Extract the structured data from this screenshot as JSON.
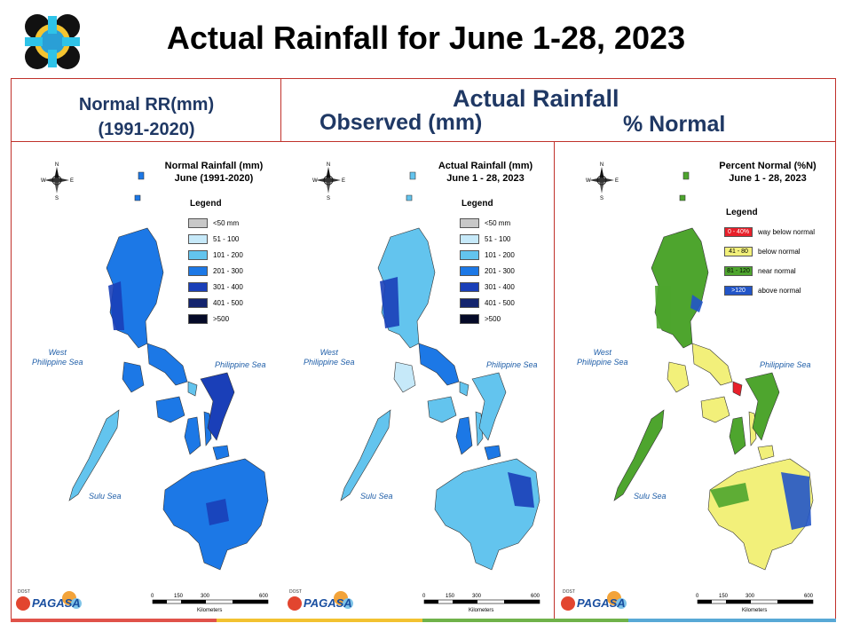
{
  "header": {
    "title": "Actual Rainfall for June 1-28, 2023"
  },
  "columns": {
    "normal_header_line1": "Normal RR(mm)",
    "normal_header_line2": "(1991-2020)",
    "actual_header": "Actual Rainfall",
    "observed_header": "Observed (mm)",
    "percent_header": "% Normal"
  },
  "panels": [
    {
      "title_line1": "Normal Rainfall (mm)",
      "title_line2": "June (1991-2020)",
      "legend_title": "Legend",
      "legend": [
        {
          "label": "<50 mm",
          "color": "#c8c8c8"
        },
        {
          "label": "51 - 100",
          "color": "#c6e9f9"
        },
        {
          "label": "101 - 200",
          "color": "#63c4ee"
        },
        {
          "label": "201 - 300",
          "color": "#1c78e6"
        },
        {
          "label": "301 - 400",
          "color": "#1a3fb8"
        },
        {
          "label": "401 - 500",
          "color": "#14246e"
        },
        {
          "label": ">500",
          "color": "#050a28"
        }
      ],
      "seas": {
        "west_1": "West",
        "west_2": "Philippine Sea",
        "east": "Philippine Sea",
        "sulu": "Sulu Sea"
      }
    },
    {
      "title_line1": "Actual Rainfall (mm)",
      "title_line2": "June 1 - 28, 2023",
      "legend_title": "Legend",
      "legend": [
        {
          "label": "<50 mm",
          "color": "#c8c8c8"
        },
        {
          "label": "51 - 100",
          "color": "#c6e9f9"
        },
        {
          "label": "101 - 200",
          "color": "#63c4ee"
        },
        {
          "label": "201 - 300",
          "color": "#1c78e6"
        },
        {
          "label": "301 - 400",
          "color": "#1a3fb8"
        },
        {
          "label": "401 - 500",
          "color": "#14246e"
        },
        {
          "label": ">500",
          "color": "#050a28"
        }
      ],
      "seas": {
        "west_1": "West",
        "west_2": "Philippine Sea",
        "east": "Philippine Sea",
        "sulu": "Sulu Sea"
      }
    },
    {
      "title_line1": "Percent Normal (%N)",
      "title_line2": "June 1 - 28, 2023",
      "legend_title": "Legend",
      "legend": [
        {
          "box": "0 - 40%",
          "label": "way below normal",
          "color": "#e8202a",
          "text_color": "#ffffff"
        },
        {
          "box": "41 - 80",
          "label": "below normal",
          "color": "#f2f07a",
          "text_color": "#000000"
        },
        {
          "box": "81 - 120",
          "label": "near normal",
          "color": "#4ea52e",
          "text_color": "#000000"
        },
        {
          "box": ">120",
          "label": "above normal",
          "color": "#2255c8",
          "text_color": "#ffffff"
        }
      ],
      "seas": {
        "west_1": "West",
        "west_2": "Philippine Sea",
        "east": "Philippine Sea",
        "sulu": "Sulu Sea"
      }
    }
  ],
  "compass": {
    "n": "N",
    "s": "S",
    "e": "E",
    "w": "W"
  },
  "scale": {
    "t0": "0",
    "t1": "150",
    "t2": "300",
    "t3": "600",
    "unit": "Kilometers"
  },
  "branding": {
    "logo_text": "PAGASA",
    "tagline": "DOST"
  },
  "colors": {
    "frame": "#c0312b",
    "header_text": "#1f3864",
    "strip": [
      "#e0524a",
      "#f2c230",
      "#6fb24a",
      "#58a9d6"
    ]
  }
}
